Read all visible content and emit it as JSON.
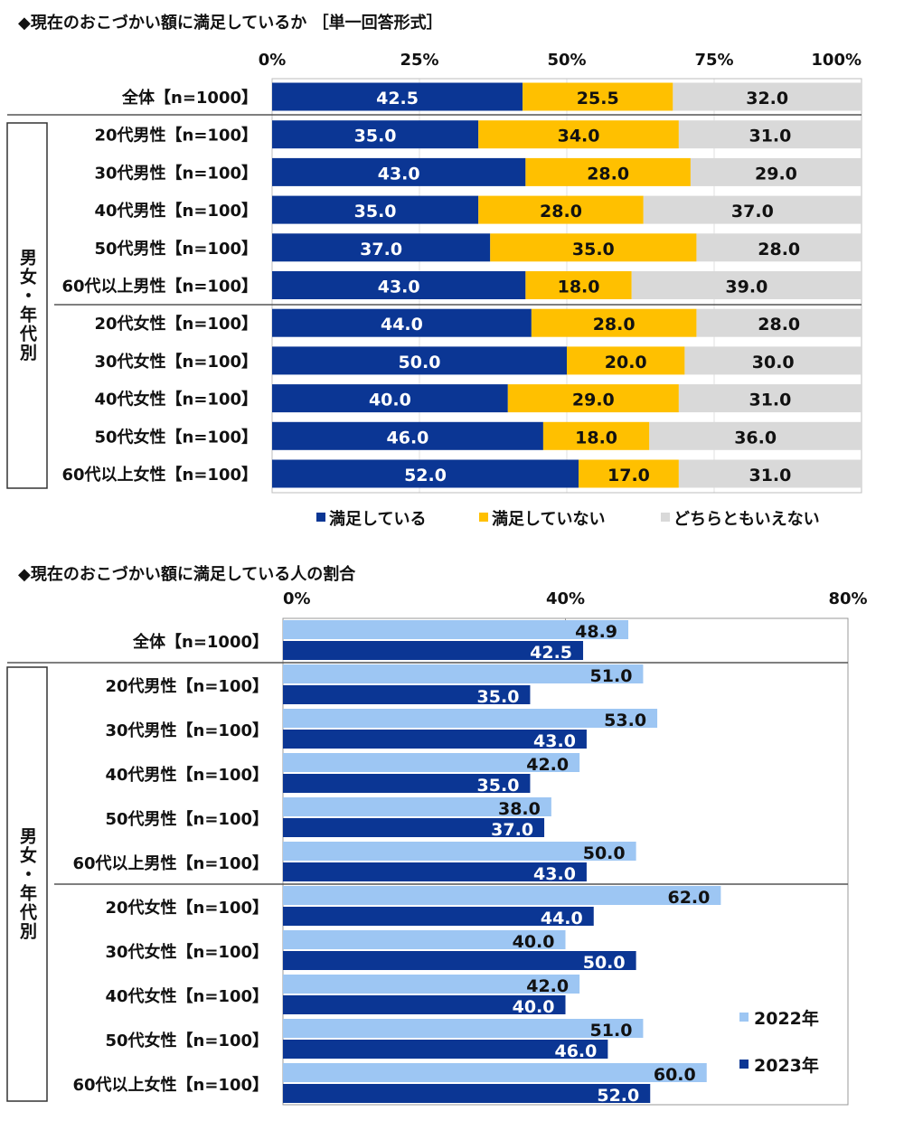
{
  "colors": {
    "satisfied": "#0b3694",
    "not_satisfied": "#ffc000",
    "neither": "#d9d9d9",
    "y2022": "#9dc6f3",
    "y2023": "#0b3694"
  },
  "group_label": "男女・年代別",
  "chart_data": [
    {
      "type": "bar",
      "orientation": "horizontal",
      "stacked": true,
      "title": "◆現在のおこづかい額に満足しているか ［単一回答形式］",
      "xlim": [
        0,
        100
      ],
      "ticks": [
        "0%",
        "25%",
        "50%",
        "75%",
        "100%"
      ],
      "tick_values": [
        0,
        25,
        50,
        75,
        100
      ],
      "legend_position": "bottom",
      "categories": [
        "全体【n=1000】",
        "20代男性【n=100】",
        "30代男性【n=100】",
        "40代男性【n=100】",
        "50代男性【n=100】",
        "60代以上男性【n=100】",
        "20代女性【n=100】",
        "30代女性【n=100】",
        "40代女性【n=100】",
        "50代女性【n=100】",
        "60代以上女性【n=100】"
      ],
      "series": [
        {
          "name": "満足している",
          "values": [
            42.5,
            35.0,
            43.0,
            35.0,
            37.0,
            43.0,
            44.0,
            50.0,
            40.0,
            46.0,
            52.0
          ],
          "labels": [
            "42.5",
            "35.0",
            "43.0",
            "35.0",
            "37.0",
            "43.0",
            "44.0",
            "50.0",
            "40.0",
            "46.0",
            "52.0"
          ]
        },
        {
          "name": "満足していない",
          "values": [
            25.5,
            34.0,
            28.0,
            28.0,
            35.0,
            18.0,
            28.0,
            20.0,
            29.0,
            18.0,
            17.0
          ],
          "labels": [
            "25.5",
            "34.0",
            "28.0",
            "28.0",
            "35.0",
            "18.0",
            "28.0",
            "20.0",
            "29.0",
            "18.0",
            "17.0"
          ]
        },
        {
          "name": "どちらともいえない",
          "values": [
            32.0,
            31.0,
            29.0,
            37.0,
            28.0,
            39.0,
            28.0,
            30.0,
            31.0,
            36.0,
            31.0
          ],
          "labels": [
            "32.0",
            "31.0",
            "29.0",
            "37.0",
            "28.0",
            "39.0",
            "28.0",
            "30.0",
            "31.0",
            "36.0",
            "31.0"
          ]
        }
      ]
    },
    {
      "type": "bar",
      "orientation": "horizontal",
      "stacked": false,
      "title": "◆現在のおこづかい額に満足している人の割合",
      "xlim": [
        0,
        80
      ],
      "ticks": [
        "0%",
        "40%",
        "80%"
      ],
      "tick_values": [
        0,
        40,
        80
      ],
      "legend_position": "bottom-right inside",
      "categories": [
        "全体【n=1000】",
        "20代男性【n=100】",
        "30代男性【n=100】",
        "40代男性【n=100】",
        "50代男性【n=100】",
        "60代以上男性【n=100】",
        "20代女性【n=100】",
        "30代女性【n=100】",
        "40代女性【n=100】",
        "50代女性【n=100】",
        "60代以上女性【n=100】"
      ],
      "series": [
        {
          "name": "2022年",
          "values": [
            48.9,
            51.0,
            53.0,
            42.0,
            38.0,
            50.0,
            62.0,
            40.0,
            42.0,
            51.0,
            60.0
          ],
          "labels": [
            "48.9",
            "51.0",
            "53.0",
            "42.0",
            "38.0",
            "50.0",
            "62.0",
            "40.0",
            "42.0",
            "51.0",
            "60.0"
          ]
        },
        {
          "name": "2023年",
          "values": [
            42.5,
            35.0,
            43.0,
            35.0,
            37.0,
            43.0,
            44.0,
            50.0,
            40.0,
            46.0,
            52.0
          ],
          "labels": [
            "42.5",
            "35.0",
            "43.0",
            "35.0",
            "37.0",
            "43.0",
            "44.0",
            "50.0",
            "40.0",
            "46.0",
            "52.0"
          ]
        }
      ]
    }
  ]
}
